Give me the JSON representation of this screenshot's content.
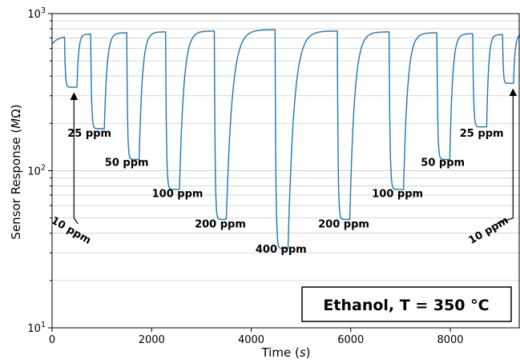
{
  "chart_data": {
    "type": "line",
    "xlabel_main": "Time (",
    "xlabel_unit": "s",
    "xlabel_close": ")",
    "ylabel_main": "Sensor Response (",
    "ylabel_unit": "M",
    "ylabel_omega": "Ω",
    "ylabel_close": ")",
    "xlim": [
      0,
      9400
    ],
    "ylim": [
      10,
      1000
    ],
    "yscale": "log",
    "grid": "horizontal",
    "line_color": "#1f77b4",
    "x_ticks": [
      0,
      2000,
      4000,
      6000,
      8000
    ],
    "x_tick_labels": [
      "0",
      "2000",
      "4000",
      "6000",
      "8000"
    ],
    "y_ticks": [
      10,
      100,
      1000
    ],
    "y_tick_bases": [
      "10",
      "10",
      "10"
    ],
    "y_tick_exps": [
      "1",
      "2",
      "3"
    ],
    "legend_box": "Ethanol, T = 350 °C",
    "series": [
      {
        "cycles": [
          {
            "label": "10 ppm",
            "start": 250,
            "end": 500,
            "baseline": 720,
            "min": 340
          },
          {
            "label": "25 ppm",
            "start": 775,
            "end": 1050,
            "baseline": 740,
            "min": 185
          },
          {
            "label": "50 ppm",
            "start": 1500,
            "end": 1750,
            "baseline": 755,
            "min": 118
          },
          {
            "label": "100 ppm",
            "start": 2280,
            "end": 2560,
            "baseline": 765,
            "min": 76
          },
          {
            "label": "200 ppm",
            "start": 3260,
            "end": 3500,
            "baseline": 775,
            "min": 49
          },
          {
            "label": "400 ppm",
            "start": 4480,
            "end": 4740,
            "baseline": 790,
            "min": 32
          },
          {
            "label": "200 ppm",
            "start": 5730,
            "end": 5980,
            "baseline": 775,
            "min": 49
          },
          {
            "label": "100 ppm",
            "start": 6770,
            "end": 7060,
            "baseline": 765,
            "min": 76
          },
          {
            "label": "50 ppm",
            "start": 7730,
            "end": 7990,
            "baseline": 755,
            "min": 118
          },
          {
            "label": "25 ppm",
            "start": 8450,
            "end": 8730,
            "baseline": 745,
            "min": 190
          },
          {
            "label": "10 ppm",
            "start": 9050,
            "end": 9270,
            "baseline": 735,
            "min": 360
          }
        ],
        "initial_value": 640,
        "final_value": 740
      }
    ],
    "annotations": [
      {
        "text": "10 ppm",
        "x": 350,
        "y": 40,
        "angle": 30
      },
      {
        "text": "25 ppm",
        "x": 750,
        "y": 165,
        "angle": 0
      },
      {
        "text": "50 ppm",
        "x": 1500,
        "y": 107,
        "angle": 0
      },
      {
        "text": "100 ppm",
        "x": 2520,
        "y": 68,
        "angle": 0
      },
      {
        "text": "200 ppm",
        "x": 3380,
        "y": 43.5,
        "angle": 0
      },
      {
        "text": "400 ppm",
        "x": 4600,
        "y": 30,
        "angle": 0
      },
      {
        "text": "200 ppm",
        "x": 5860,
        "y": 43.5,
        "angle": 0
      },
      {
        "text": "100 ppm",
        "x": 6940,
        "y": 68,
        "angle": 0
      },
      {
        "text": "50 ppm",
        "x": 7850,
        "y": 107,
        "angle": 0
      },
      {
        "text": "25 ppm",
        "x": 8630,
        "y": 165,
        "angle": 0
      },
      {
        "text": "10 ppm",
        "x": 8800,
        "y": 40,
        "angle": -30
      }
    ]
  }
}
